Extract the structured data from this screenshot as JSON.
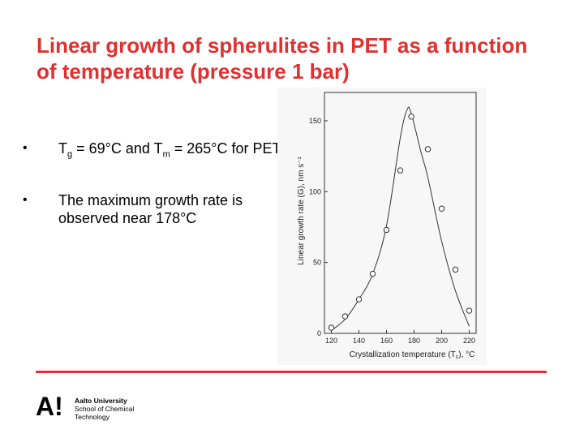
{
  "slide": {
    "title_line1": "Linear growth of spherulites in PET as a function",
    "title_line2": "of temperature (pressure 1 bar)",
    "accent_color": "#e0302f"
  },
  "bullets": [
    {
      "tg_symbol": "T",
      "tg_sub": "g",
      "tg_text": " = 69°C and T",
      "tm_sub": "m",
      "tm_text": " = 265°C for PET"
    },
    {
      "text": "The maximum growth rate is observed near 178°C"
    }
  ],
  "logo": {
    "mark": "A!",
    "line1": "Aalto University",
    "line2": "School of Chemical",
    "line3": "Technology"
  },
  "chart_data": {
    "type": "scatter",
    "x": [
      120,
      130,
      140,
      150,
      160,
      170,
      178,
      190,
      200,
      210,
      220
    ],
    "y": [
      4,
      12,
      24,
      42,
      73,
      115,
      153,
      130,
      88,
      45,
      16
    ],
    "curve_x": [
      120,
      130,
      140,
      150,
      160,
      170,
      175,
      178,
      185,
      190,
      200,
      210,
      220
    ],
    "curve_y": [
      2,
      10,
      24,
      42,
      76,
      138,
      158,
      155,
      128,
      110,
      65,
      30,
      5
    ],
    "xlabel": "Crystallization temperature (T",
    "xlabel_sub": "c",
    "xlabel_end": "), °C",
    "ylabel": "Linear growth rate (G), nm s⁻¹",
    "xticks": [
      "120",
      "140",
      "160",
      "180",
      "200",
      "220"
    ],
    "yticks": [
      "0",
      "50",
      "100",
      "150"
    ],
    "xlim": [
      115,
      225
    ],
    "ylim": [
      0,
      170
    ],
    "grid": false
  }
}
